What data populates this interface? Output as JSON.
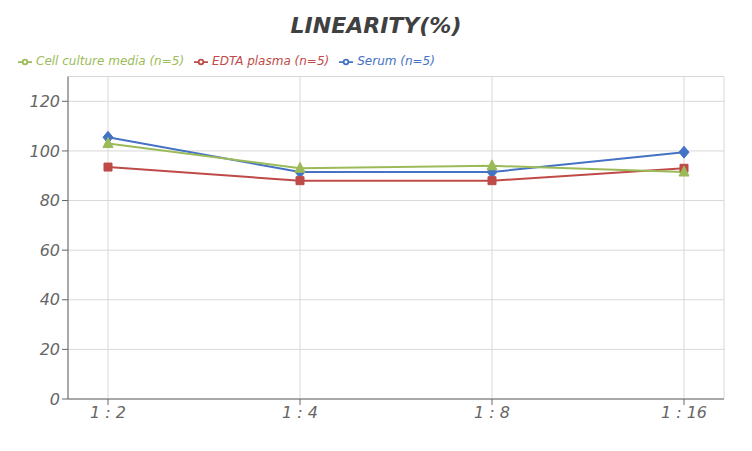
{
  "chart_data": {
    "type": "line",
    "title": "LINEARITY(%)",
    "categories": [
      "1 : 2",
      "1 : 4",
      "1 : 8",
      "1 : 16"
    ],
    "series": [
      {
        "name": "Serum (n=5)",
        "color": "#4472C4",
        "marker": "diamond",
        "values": [
          105.5,
          91.5,
          91.5,
          99.5
        ]
      },
      {
        "name": "EDTA plasma (n=5)",
        "color": "#BE4B48",
        "marker": "square",
        "values": [
          93.5,
          88.0,
          88.0,
          93.0
        ]
      },
      {
        "name": "Cell culture media (n=5)",
        "color": "#9BBB59",
        "marker": "triangle",
        "values": [
          103.0,
          93.0,
          94.0,
          91.5
        ]
      }
    ],
    "ylim": [
      0,
      130
    ],
    "yticks": [
      0,
      20,
      40,
      60,
      80,
      100,
      120
    ],
    "grid": true,
    "legend": "top"
  }
}
